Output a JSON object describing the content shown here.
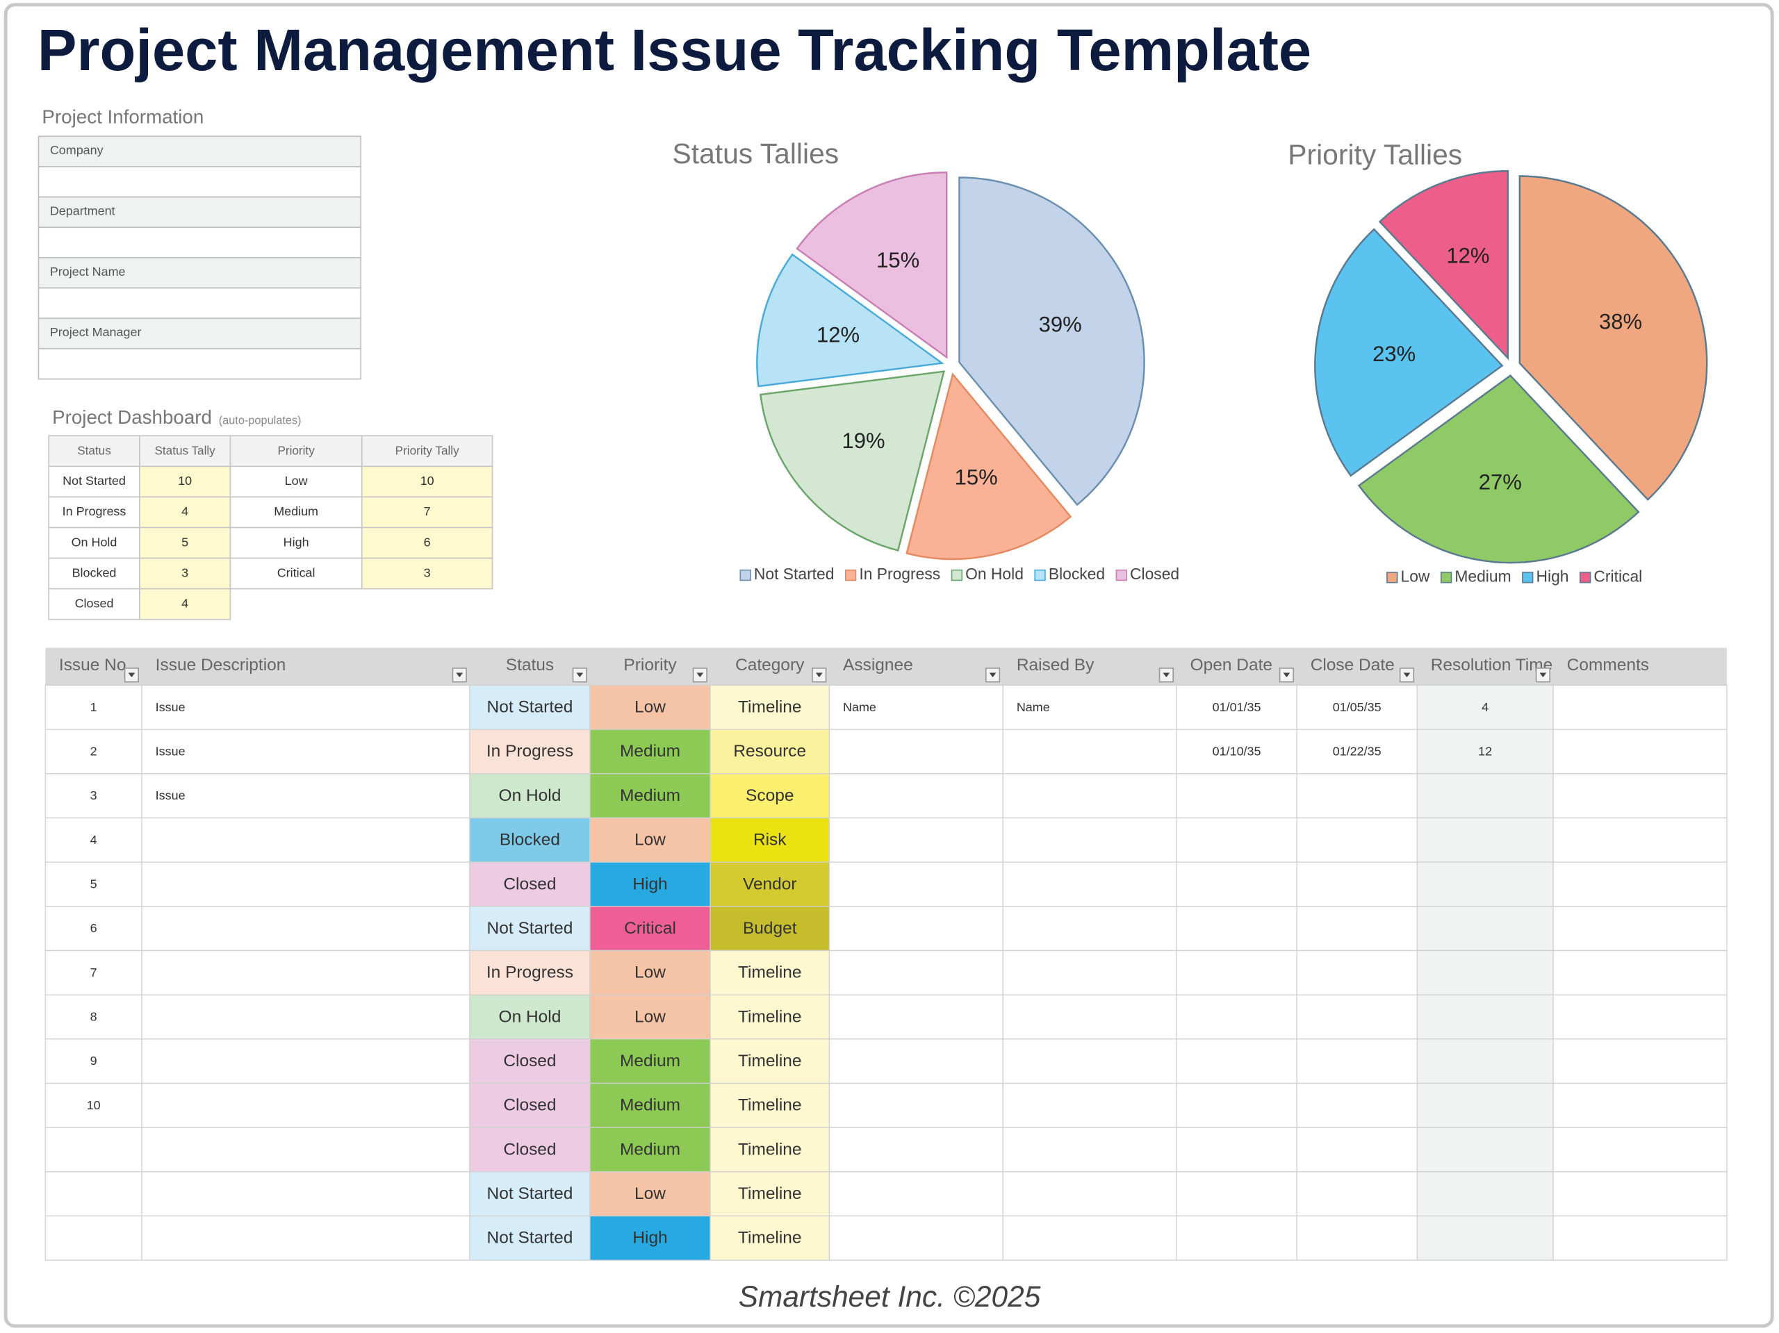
{
  "title": "Project Management Issue Tracking Template",
  "project_info": {
    "heading": "Project Information",
    "fields": [
      "Company",
      "Department",
      "Project Name",
      "Project Manager"
    ]
  },
  "dashboard": {
    "heading": "Project Dashboard",
    "note": "(auto-populates)",
    "columns": [
      "Status",
      "Status Tally",
      "Priority",
      "Priority Tally"
    ],
    "rows": [
      [
        "Not Started",
        10,
        "Low",
        10
      ],
      [
        "In Progress",
        4,
        "Medium",
        7
      ],
      [
        "On Hold",
        5,
        "High",
        6
      ],
      [
        "Blocked",
        3,
        "Critical",
        3
      ],
      [
        "Closed",
        4,
        null,
        null
      ]
    ]
  },
  "chart_data": [
    {
      "type": "pie",
      "title": "Status Tallies",
      "categories": [
        "Not Started",
        "In Progress",
        "On Hold",
        "Blocked",
        "Closed"
      ],
      "values": [
        39,
        15,
        19,
        12,
        15
      ],
      "value_labels": [
        "39%",
        "15%",
        "19%",
        "12%",
        "15%"
      ],
      "colors": [
        "#c3d3e9",
        "#f9b296",
        "#d3e7d2",
        "#b8e3f7",
        "#ebbfe0"
      ],
      "legend": "bottom"
    },
    {
      "type": "pie",
      "title": "Priority Tallies",
      "categories": [
        "Low",
        "Medium",
        "High",
        "Critical"
      ],
      "values": [
        38,
        27,
        23,
        12
      ],
      "value_labels": [
        "38%",
        "27%",
        "23%",
        "12%"
      ],
      "colors": [
        "#f0a77f",
        "#8fca66",
        "#5bc3f0",
        "#ee5e8a"
      ],
      "legend": "bottom"
    }
  ],
  "issues": {
    "columns": [
      "Issue No.",
      "Issue Description",
      "Status",
      "Priority",
      "Category",
      "Assignee",
      "Raised By",
      "Open Date",
      "Close Date",
      "Resolution Time",
      "Comments"
    ],
    "rows": [
      [
        1,
        "Issue",
        "Not Started",
        "Low",
        "Timeline",
        "Name",
        "Name",
        "01/01/35",
        "01/05/35",
        4,
        null
      ],
      [
        2,
        "Issue",
        "In Progress",
        "Medium",
        "Resource",
        null,
        null,
        "01/10/35",
        "01/22/35",
        12,
        null
      ],
      [
        3,
        "Issue",
        "On Hold",
        "Medium",
        "Scope",
        null,
        null,
        null,
        null,
        null,
        null
      ],
      [
        4,
        null,
        "Blocked",
        "Low",
        "Risk",
        null,
        null,
        null,
        null,
        null,
        null
      ],
      [
        5,
        null,
        "Closed",
        "High",
        "Vendor",
        null,
        null,
        null,
        null,
        null,
        null
      ],
      [
        6,
        null,
        "Not Started",
        "Critical",
        "Budget",
        null,
        null,
        null,
        null,
        null,
        null
      ],
      [
        7,
        null,
        "In Progress",
        "Low",
        "Timeline",
        null,
        null,
        null,
        null,
        null,
        null
      ],
      [
        8,
        null,
        "On Hold",
        "Low",
        "Timeline",
        null,
        null,
        null,
        null,
        null,
        null
      ],
      [
        9,
        null,
        "Closed",
        "Medium",
        "Timeline",
        null,
        null,
        null,
        null,
        null,
        null
      ],
      [
        10,
        null,
        "Closed",
        "Medium",
        "Timeline",
        null,
        null,
        null,
        null,
        null,
        null
      ],
      [
        null,
        null,
        "Closed",
        "Medium",
        "Timeline",
        null,
        null,
        null,
        null,
        null,
        null
      ],
      [
        null,
        null,
        "Not Started",
        "Low",
        "Timeline",
        null,
        null,
        null,
        null,
        null,
        null
      ],
      [
        null,
        null,
        "Not Started",
        "High",
        "Timeline",
        null,
        null,
        null,
        null,
        null,
        null
      ]
    ]
  },
  "footer": "Smartsheet Inc. ©2025"
}
